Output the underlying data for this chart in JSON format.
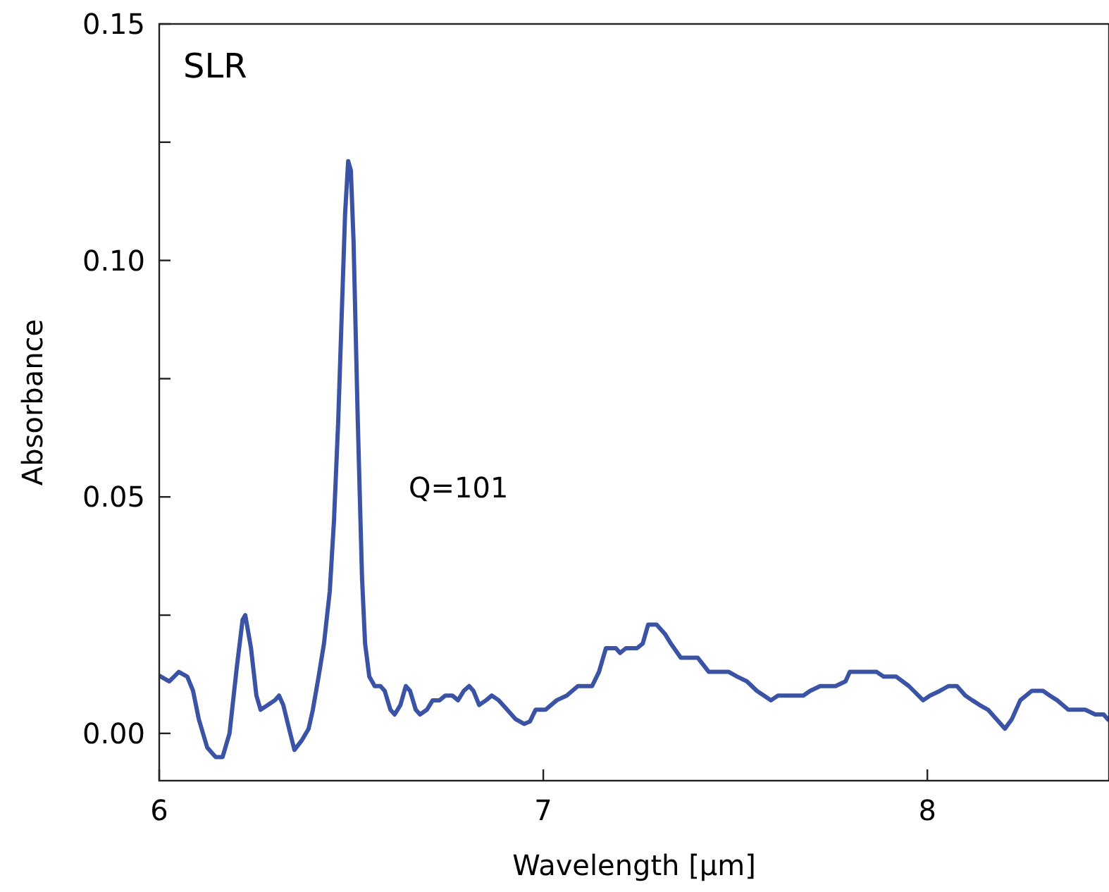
{
  "chart_data": {
    "type": "line",
    "title": "SLR",
    "xlabel": "Wavelength [μm]",
    "ylabel": "Absorbance",
    "annotations": [
      "Q=101"
    ],
    "xlim": [
      6,
      8.473
    ],
    "xticks": [
      6,
      7,
      8
    ],
    "ylim": [
      -0.01,
      0.15
    ],
    "yticks": [
      {
        "value": 0,
        "label": "0.00"
      },
      {
        "value": 0.025,
        "label": null
      },
      {
        "value": 0.05,
        "label": "0.05"
      },
      {
        "value": 0.075,
        "label": null
      },
      {
        "value": 0.1,
        "label": "0.10"
      },
      {
        "value": 0.125,
        "label": null
      },
      {
        "value": 0.15,
        "label": "0.15"
      }
    ],
    "grid": false,
    "marker": "none",
    "line_style": "solid",
    "series": [
      {
        "color": "#3a53a4",
        "x": [
          6.0,
          6.026,
          6.051,
          6.073,
          6.088,
          6.103,
          6.125,
          6.147,
          6.165,
          6.183,
          6.202,
          6.217,
          6.224,
          6.239,
          6.253,
          6.264,
          6.283,
          6.301,
          6.312,
          6.323,
          6.338,
          6.352,
          6.371,
          6.389,
          6.4,
          6.415,
          6.429,
          6.444,
          6.455,
          6.466,
          6.477,
          6.484,
          6.492,
          6.499,
          6.506,
          6.517,
          6.528,
          6.536,
          6.547,
          6.561,
          6.576,
          6.587,
          6.602,
          6.613,
          6.628,
          6.642,
          6.653,
          6.668,
          6.679,
          6.697,
          6.712,
          6.73,
          6.745,
          6.763,
          6.778,
          6.793,
          6.807,
          6.818,
          6.833,
          6.851,
          6.866,
          6.884,
          6.906,
          6.928,
          6.95,
          6.965,
          6.98,
          7.006,
          7.035,
          7.061,
          7.09,
          7.127,
          7.145,
          7.163,
          7.189,
          7.2,
          7.215,
          7.244,
          7.259,
          7.273,
          7.295,
          7.317,
          7.332,
          7.358,
          7.402,
          7.431,
          7.483,
          7.505,
          7.53,
          7.556,
          7.593,
          7.611,
          7.677,
          7.695,
          7.721,
          7.761,
          7.787,
          7.798,
          7.868,
          7.886,
          7.919,
          7.952,
          7.989,
          8.007,
          8.033,
          8.055,
          8.077,
          8.099,
          8.117,
          8.136,
          8.158,
          8.18,
          8.202,
          8.22,
          8.242,
          8.272,
          8.301,
          8.319,
          8.338,
          8.367,
          8.411,
          8.437,
          8.459,
          8.473
        ],
        "values": [
          0.0122,
          0.011,
          0.013,
          0.012,
          0.009,
          0.003,
          -0.003,
          -0.005,
          -0.005,
          0.0,
          0.014,
          0.024,
          0.025,
          0.018,
          0.008,
          0.005,
          0.006,
          0.007,
          0.008,
          0.006,
          0.001,
          -0.0035,
          -0.0015,
          0.001,
          0.005,
          0.012,
          0.019,
          0.03,
          0.045,
          0.066,
          0.093,
          0.11,
          0.121,
          0.119,
          0.104,
          0.066,
          0.033,
          0.019,
          0.012,
          0.01,
          0.01,
          0.009,
          0.005,
          0.004,
          0.006,
          0.01,
          0.009,
          0.005,
          0.004,
          0.005,
          0.007,
          0.007,
          0.008,
          0.008,
          0.007,
          0.009,
          0.01,
          0.009,
          0.006,
          0.007,
          0.008,
          0.007,
          0.005,
          0.003,
          0.002,
          0.0025,
          0.005,
          0.005,
          0.007,
          0.008,
          0.01,
          0.01,
          0.013,
          0.018,
          0.018,
          0.017,
          0.018,
          0.018,
          0.019,
          0.023,
          0.023,
          0.021,
          0.019,
          0.016,
          0.016,
          0.013,
          0.013,
          0.012,
          0.011,
          0.009,
          0.007,
          0.008,
          0.008,
          0.009,
          0.01,
          0.01,
          0.011,
          0.013,
          0.013,
          0.012,
          0.012,
          0.01,
          0.007,
          0.008,
          0.009,
          0.01,
          0.01,
          0.008,
          0.007,
          0.006,
          0.005,
          0.003,
          0.001,
          0.003,
          0.007,
          0.009,
          0.009,
          0.008,
          0.007,
          0.005,
          0.005,
          0.004,
          0.004,
          0.0027
        ]
      }
    ]
  }
}
